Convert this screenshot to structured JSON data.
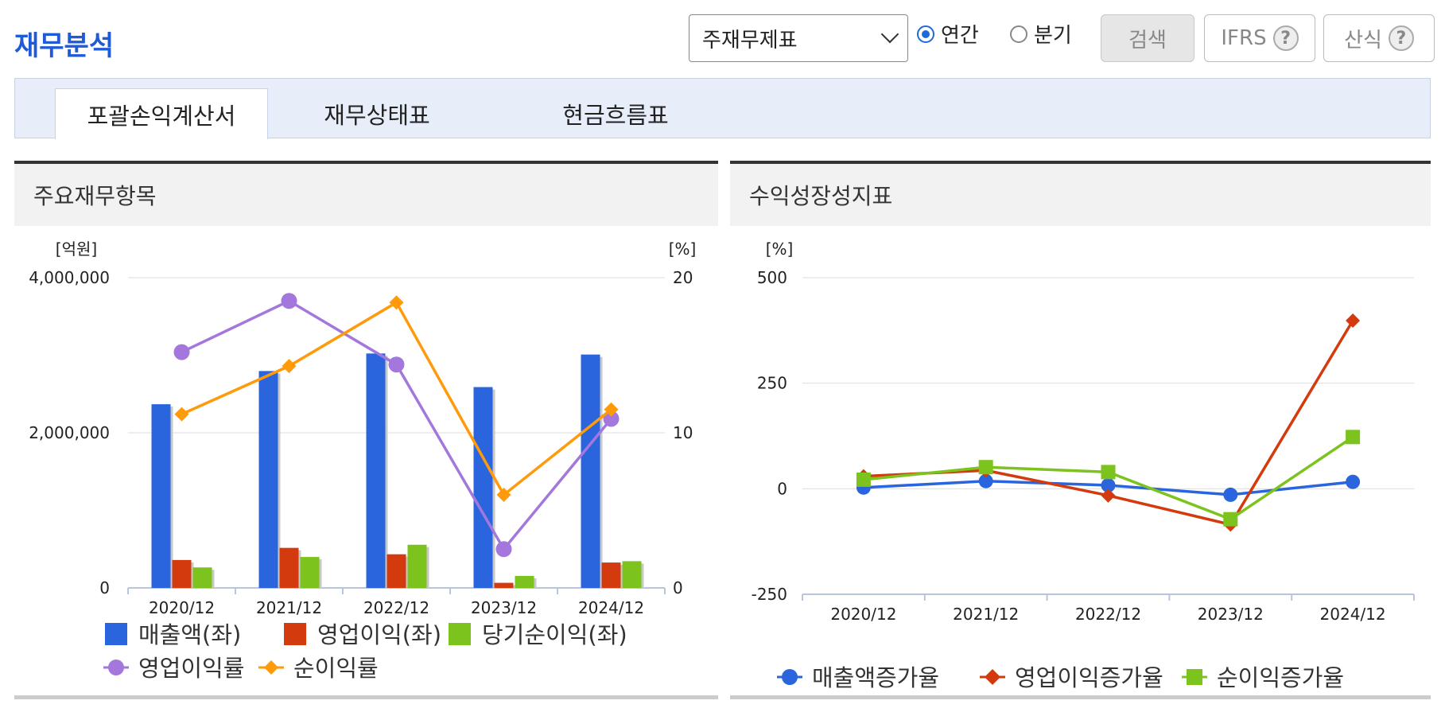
{
  "page": {
    "title": "재무분석",
    "select": {
      "value": "주재무제표"
    },
    "period": {
      "annual": "연간",
      "quarterly": "분기",
      "selected": "annual"
    },
    "buttons": {
      "search": "검색",
      "ifrs": "IFRS",
      "formula": "산식"
    },
    "tabs": [
      {
        "label": "포괄손익계산서",
        "active": true
      },
      {
        "label": "재무상태표",
        "active": false
      },
      {
        "label": "현금흐름표",
        "active": false
      }
    ],
    "panels": {
      "left_title": "주요재무항목",
      "right_title": "수익성장성지표"
    }
  },
  "chart_data": [
    {
      "type": "bar",
      "left_axis_label": "[억원]",
      "right_axis_label": "[%]",
      "categories": [
        "2020/12",
        "2021/12",
        "2022/12",
        "2023/12",
        "2024/12"
      ],
      "left_ticks": [
        "0",
        "2,000,000",
        "4,000,000"
      ],
      "right_ticks": [
        "0",
        "10",
        "20"
      ],
      "ylim_left": [
        0,
        4000000
      ],
      "ylim_right": [
        0,
        20
      ],
      "grid": true,
      "legend_position": "bottom",
      "bar_series": [
        {
          "name": "매출액(좌)",
          "color": "#2a65dd",
          "values": [
            2368070,
            2796048,
            3022314,
            2589355,
            3008709
          ]
        },
        {
          "name": "영업이익(좌)",
          "color": "#d33a0d",
          "values": [
            359939,
            516339,
            433766,
            65670,
            327260
          ]
        },
        {
          "name": "당기순이익(좌)",
          "color": "#7cc31e",
          "values": [
            264078,
            399075,
            556541,
            154871,
            344514
          ]
        }
      ],
      "line_series": [
        {
          "name": "영업이익률",
          "color": "#a477dc",
          "marker": "circle",
          "values": [
            15.2,
            18.5,
            14.4,
            2.5,
            10.9
          ]
        },
        {
          "name": "순이익률",
          "color": "#ff9a0a",
          "marker": "diamond",
          "values": [
            11.2,
            14.3,
            18.4,
            6.0,
            11.5
          ]
        }
      ]
    },
    {
      "type": "line",
      "axis_label": "[%]",
      "categories": [
        "2020/12",
        "2021/12",
        "2022/12",
        "2023/12",
        "2024/12"
      ],
      "ticks": [
        "-250",
        "0",
        "250",
        "500"
      ],
      "ylim": [
        -250,
        500
      ],
      "grid": true,
      "legend_position": "bottom",
      "series": [
        {
          "name": "매출액증가율",
          "color": "#2a65dd",
          "marker": "circle",
          "values": [
            2.8,
            18.1,
            8.1,
            -14.3,
            16.2
          ]
        },
        {
          "name": "영업이익증가율",
          "color": "#d33a0d",
          "marker": "diamond",
          "values": [
            29.6,
            43.5,
            -16.0,
            -84.9,
            398.3
          ]
        },
        {
          "name": "순이익증가율",
          "color": "#7cc31e",
          "marker": "square",
          "values": [
            21.5,
            51.1,
            39.5,
            -72.2,
            122.5
          ]
        }
      ]
    }
  ]
}
